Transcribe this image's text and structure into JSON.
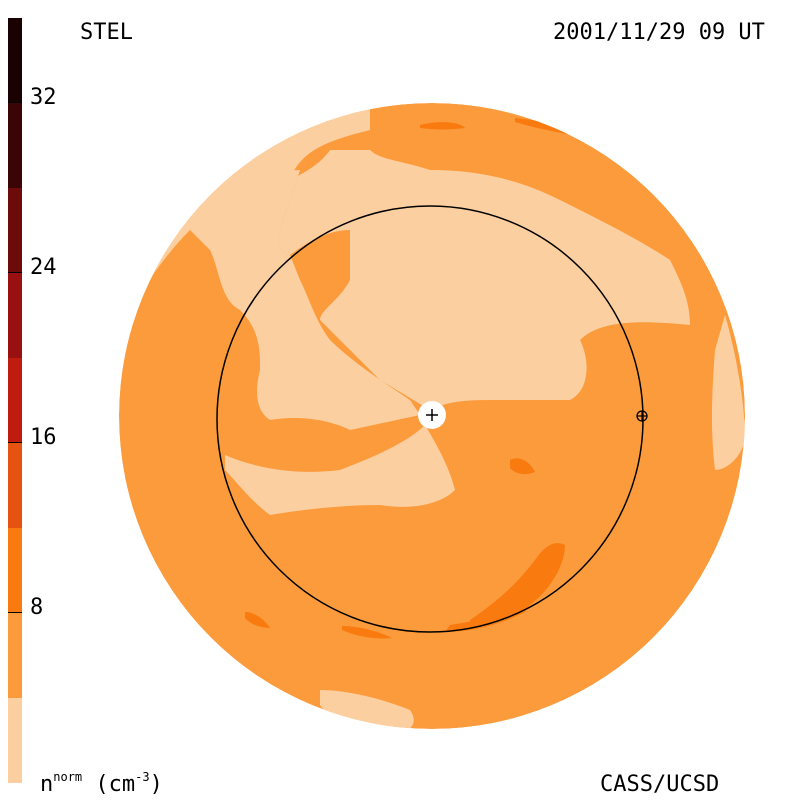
{
  "header": {
    "label_left": "STEL",
    "timestamp": "2001/11/29 09 UT"
  },
  "footer": {
    "units_n": "n",
    "units_sup": "norm",
    "units_paren": "(cm",
    "units_exp": "-3",
    "units_close": ")",
    "credit": "CASS/UCSD"
  },
  "colorbar": {
    "ticks": [
      "8",
      "16",
      "24",
      "32"
    ],
    "colors_bottom_to_top": [
      "#fccfa0",
      "#fb9b3c",
      "#f97a0e",
      "#e6520f",
      "#c01b0f",
      "#981010",
      "#6d0a0a",
      "#3c0505",
      "#1a0202"
    ]
  },
  "map_colors": {
    "light": "#fccfa0",
    "mid": "#fb9b3c",
    "dark": "#f97a0e"
  }
}
